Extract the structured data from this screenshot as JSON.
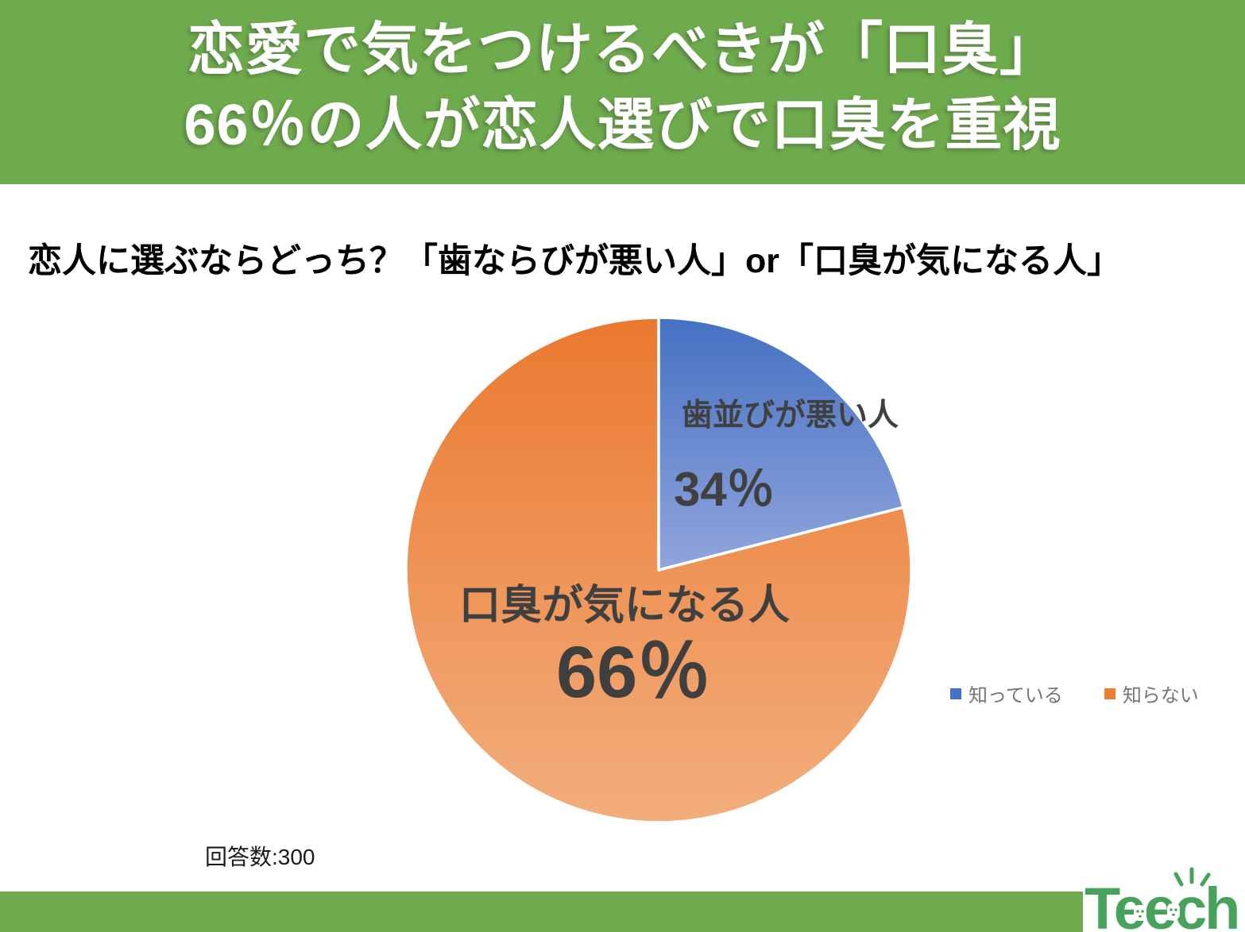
{
  "header": {
    "title_line1": "恋愛で気をつけるべきが「口臭」",
    "title_line2": "66％の人が恋人選びで口臭を重視",
    "bg_color": "#6EAB4C",
    "text_color": "#FFFFFF"
  },
  "question": {
    "text": "恋人に選ぶならどっち？「歯ならびが悪い人」or「口臭が気になる人」"
  },
  "chart_data": {
    "type": "pie",
    "title": "恋人に選ぶならどっち？「歯ならびが悪い人」or「口臭が気になる人」",
    "categories": [
      "歯並びが悪い人",
      "口臭が気になる人"
    ],
    "values": [
      34,
      66
    ],
    "slices": [
      {
        "label": "歯並びが悪い人",
        "value_label": "34％",
        "pct": 34,
        "drawn_pct": 21,
        "color_top": "#4571C3",
        "color_bottom": "#91A5DC"
      },
      {
        "label": "口臭が気になる人",
        "value_label": "66％",
        "pct": 66,
        "drawn_pct": 79,
        "color_top": "#EB7930",
        "color_bottom": "#F2AE7D"
      }
    ],
    "legend": [
      {
        "label": "知っている",
        "color": "#4472C4"
      },
      {
        "label": "知らない",
        "color": "#ED7D31"
      }
    ],
    "legend_position": "right",
    "start_angle_deg": 0,
    "direction": "clockwise"
  },
  "note": {
    "respondents": "回答数:300"
  },
  "footer": {
    "bar_color": "#6EAB4C",
    "logo_text": "Teech",
    "logo_color": "#47A35C"
  }
}
